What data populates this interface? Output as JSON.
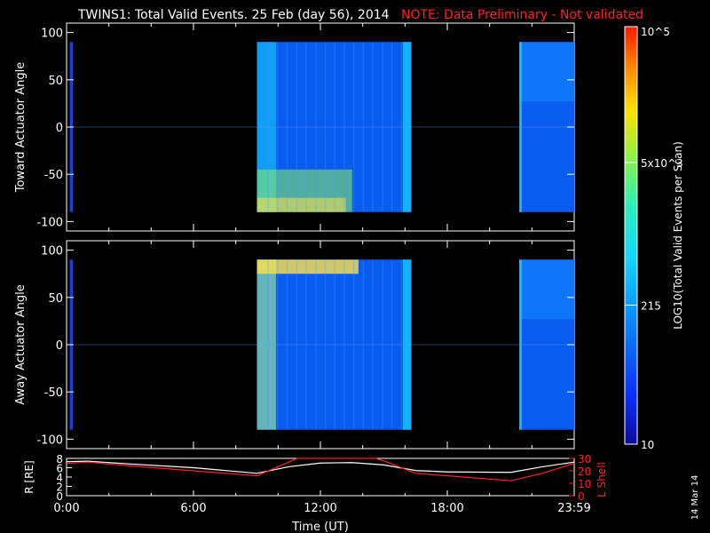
{
  "title": {
    "main": "TWINS1: Total Valid Events. 25 Feb (day  56), 2014",
    "note": "NOTE: Data Preliminary - Not validated"
  },
  "stamp": "14 Mar 14",
  "colorbar": {
    "label": "LOG10(Total Valid Events per Scan)",
    "ticks": [
      "10",
      "215",
      "5x10^3",
      "10^5"
    ],
    "range": [
      10,
      100000
    ],
    "colors": [
      "#0b0b9a",
      "#0a30ff",
      "#0a8aff",
      "#12d8ff",
      "#2ff0b0",
      "#9af03a",
      "#ffe000",
      "#ff8c00",
      "#ff1a00"
    ]
  },
  "chart_data": [
    {
      "type": "heatmap",
      "panel": "top",
      "ylabel": "Toward Actuator Angle",
      "xlim": [
        0,
        24
      ],
      "ylim": [
        -110,
        110
      ],
      "yticks": [
        100,
        50,
        0,
        -50,
        -100
      ],
      "x_data_ranges": [
        [
          0.15,
          0.3
        ],
        [
          9.0,
          16.3
        ],
        [
          21.4,
          24.0
        ]
      ],
      "dominant_color": "blue",
      "note_text": "values increase toward lower angles near 09:00-12:00 (green/yellow)"
    },
    {
      "type": "heatmap",
      "panel": "middle",
      "ylabel": "Away Actuator Angle",
      "xlim": [
        0,
        24
      ],
      "ylim": [
        -110,
        110
      ],
      "yticks": [
        100,
        50,
        0,
        -50,
        -100
      ],
      "x_data_ranges": [
        [
          0.15,
          0.3
        ],
        [
          9.0,
          16.3
        ],
        [
          21.4,
          24.0
        ]
      ],
      "dominant_color": "blue",
      "note_text": "high values (yellow) near +90 deg from 09:00-12:00"
    },
    {
      "type": "line",
      "panel": "bottom",
      "xlabel": "Time (UT)",
      "x_ticklabels": [
        "0:00",
        "6:00",
        "12:00",
        "18:00",
        "23:59"
      ],
      "xlim": [
        0,
        24
      ],
      "left_axis": {
        "label": "R [RE]",
        "ticks": [
          0,
          2,
          4,
          6,
          8
        ],
        "ylim": [
          0,
          8
        ]
      },
      "right_axis": {
        "label": "L Shell",
        "ticks": [
          0,
          10,
          20,
          30
        ],
        "ylim": [
          0,
          30
        ]
      },
      "series": [
        {
          "name": "R",
          "color": "#ffffff",
          "x": [
            0,
            1,
            3,
            6,
            9,
            10.5,
            12,
            13.5,
            15,
            16.5,
            18,
            21,
            22.5,
            24
          ],
          "y": [
            7.3,
            7.4,
            6.8,
            6.0,
            4.8,
            6.2,
            7.0,
            7.1,
            6.6,
            5.4,
            5.1,
            5.0,
            6.2,
            7.2
          ]
        },
        {
          "name": "L Shell",
          "color": "#ff2020",
          "x": [
            0,
            1,
            3,
            6,
            9,
            10.5,
            10.9,
            14.6,
            15,
            16.5,
            18,
            21,
            22.5,
            24
          ],
          "y": [
            26,
            27,
            24,
            20,
            16,
            27,
            30,
            30,
            28,
            18,
            16,
            12,
            18,
            26
          ]
        }
      ]
    }
  ]
}
